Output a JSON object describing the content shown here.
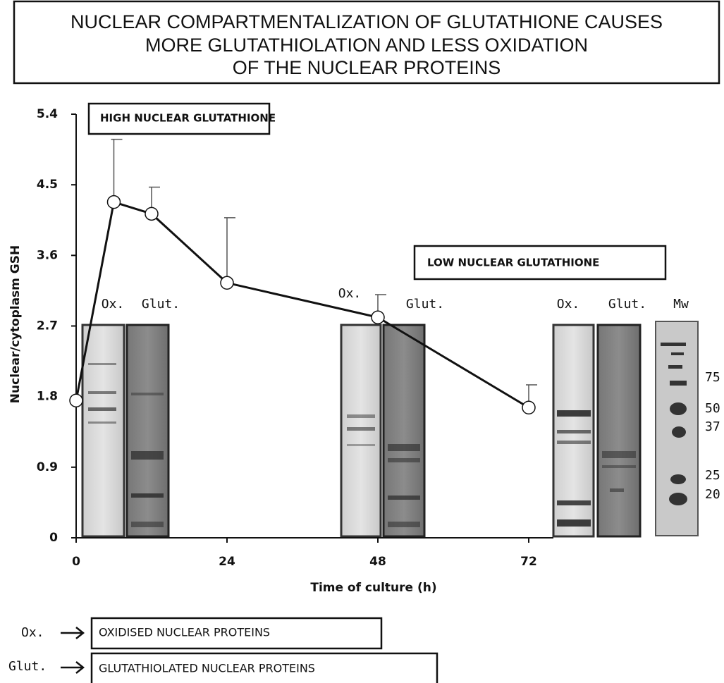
{
  "chart_data": {
    "type": "line",
    "title": [
      "NUCLEAR COMPARTMENTALIZATION OF GLUTATHIONE CAUSES",
      "MORE GLUTATHIOLATION AND LESS OXIDATION",
      "OF THE NUCLEAR PROTEINS"
    ],
    "x_label": "Time of culture (h)",
    "y_label": "Nuclear/cytoplasm GSH",
    "x": [
      0,
      6,
      12,
      24,
      48,
      72
    ],
    "values": [
      1.75,
      4.28,
      4.13,
      3.25,
      2.81,
      1.66
    ],
    "errors": [
      null,
      0.8,
      0.34,
      0.83,
      0.29,
      0.29
    ],
    "color": "#111111",
    "xlim": [
      0,
      72
    ],
    "xticks": [
      0,
      24,
      48,
      72
    ],
    "ylim": [
      0,
      5.4
    ],
    "yticks": [
      0,
      0.9,
      1.8,
      2.7,
      3.6,
      4.5,
      5.4
    ],
    "annotations": [
      "HIGH NUCLEAR GLUTATHIONE",
      "LOW NUCLEAR GLUTATHIONE"
    ],
    "gel_labels": {
      "ox": "Ox.",
      "glut": "Glut.",
      "mw": "Mw"
    },
    "mw_markers": [
      75,
      50,
      37,
      25,
      20
    ],
    "legend": [
      {
        "key": "Ox.",
        "label": "OXIDISED NUCLEAR PROTEINS"
      },
      {
        "key": "Glut.",
        "label": "GLUTATHIOLATED NUCLEAR PROTEINS"
      }
    ]
  }
}
